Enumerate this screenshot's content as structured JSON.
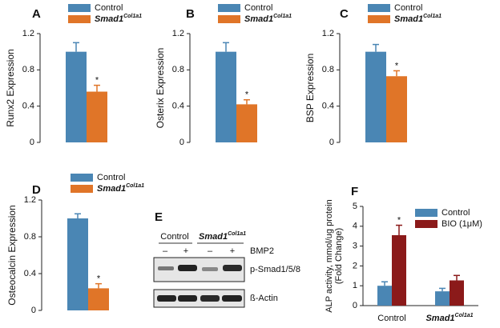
{
  "chart_data": [
    {
      "type": "bar",
      "panel": "A",
      "ylabel": "Runx2 Expression",
      "ylim": [
        0,
        1.2
      ],
      "yticks": [
        0,
        0.4,
        0.8,
        1.2
      ],
      "series": [
        {
          "name": "Control",
          "color": "#4a86b4",
          "values": [
            1.0
          ],
          "errors": [
            0.1
          ]
        },
        {
          "name": "Smad1",
          "name_superscript": "Col1a1",
          "color": "#e07528",
          "values": [
            0.56
          ],
          "errors": [
            0.07
          ],
          "annotations": [
            "*"
          ]
        }
      ]
    },
    {
      "type": "bar",
      "panel": "B",
      "ylabel": "Osterix Expression",
      "ylim": [
        0,
        1.2
      ],
      "yticks": [
        0,
        0.4,
        0.8,
        1.2
      ],
      "series": [
        {
          "name": "Control",
          "color": "#4a86b4",
          "values": [
            1.0
          ],
          "errors": [
            0.1
          ]
        },
        {
          "name": "Smad1",
          "name_superscript": "Col1a1",
          "color": "#e07528",
          "values": [
            0.42
          ],
          "errors": [
            0.05
          ],
          "annotations": [
            "*"
          ]
        }
      ]
    },
    {
      "type": "bar",
      "panel": "C",
      "ylabel": "BSP Expression",
      "ylim": [
        0,
        1.2
      ],
      "yticks": [
        0,
        0.4,
        0.8,
        1.2
      ],
      "series": [
        {
          "name": "Control",
          "color": "#4a86b4",
          "values": [
            1.0
          ],
          "errors": [
            0.08
          ]
        },
        {
          "name": "Smad1",
          "name_superscript": "Col1a1",
          "color": "#e07528",
          "values": [
            0.73
          ],
          "errors": [
            0.06
          ],
          "annotations": [
            "*"
          ]
        }
      ]
    },
    {
      "type": "bar",
      "panel": "D",
      "ylabel": "Osteocalcin Expression",
      "ylim": [
        0,
        1.2
      ],
      "yticks": [
        0,
        0.4,
        0.8,
        1.2
      ],
      "series": [
        {
          "name": "Control",
          "color": "#4a86b4",
          "values": [
            1.0
          ],
          "errors": [
            0.05
          ]
        },
        {
          "name": "Smad1",
          "name_superscript": "Col1a1",
          "color": "#e07528",
          "values": [
            0.24
          ],
          "errors": [
            0.05
          ],
          "annotations": [
            "*"
          ]
        }
      ]
    },
    {
      "type": "bar",
      "panel": "F",
      "ylabel": [
        "ALP activity, mmol/ug protein",
        "(Fold Change)"
      ],
      "ylim": [
        0,
        5
      ],
      "yticks": [
        0,
        1,
        2,
        3,
        4,
        5
      ],
      "categories": [
        "Control",
        "Smad1"
      ],
      "category_superscripts": [
        null,
        "Col1a1"
      ],
      "series": [
        {
          "name": "Control",
          "color": "#4a86b4",
          "values": [
            1.0,
            0.72
          ],
          "errors": [
            0.2,
            0.15
          ]
        },
        {
          "name": "BIO (1μM)",
          "color": "#8b1a1a",
          "values": [
            3.55,
            1.27
          ],
          "errors": [
            0.5,
            0.25
          ],
          "annotations": [
            "*",
            null
          ]
        }
      ]
    }
  ],
  "blot": {
    "panel": "E",
    "groups": [
      {
        "name": "Control"
      },
      {
        "name": "Smad1",
        "superscript": "Col1a1"
      }
    ],
    "treatment": "BMP2",
    "lanes": [
      "–",
      "+",
      "–",
      "+"
    ],
    "rows": [
      "p-Smad1/5/8",
      "ß-Actin"
    ]
  }
}
